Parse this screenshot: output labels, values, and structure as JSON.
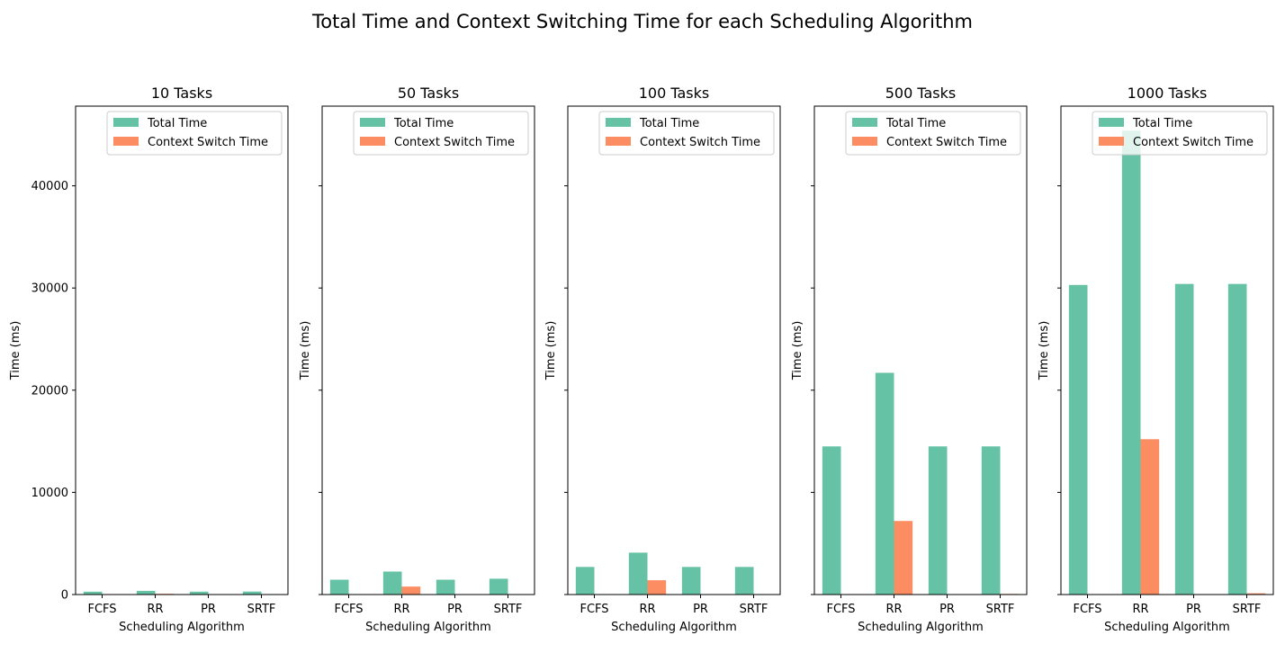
{
  "figure": {
    "title": "Total Time and Context Switching Time for each Scheduling Algorithm"
  },
  "colors": {
    "total_time": "#66c2a5",
    "context_switch_time": "#fc8d62"
  },
  "chart_data": [
    {
      "type": "bar",
      "title": "10 Tasks",
      "xlabel": "Scheduling Algorithm",
      "ylabel": "Time (ms)",
      "categories": [
        "FCFS",
        "RR",
        "PR",
        "SRTF"
      ],
      "ylim": [
        0,
        47800
      ],
      "yticks": [
        0,
        10000,
        20000,
        30000,
        40000
      ],
      "show_ytick_labels": true,
      "legend": {
        "position": "top-right"
      },
      "series": [
        {
          "name": "Total Time",
          "values": [
            280,
            360,
            280,
            290
          ]
        },
        {
          "name": "Context Switch Time",
          "values": [
            0,
            70,
            0,
            2
          ]
        }
      ]
    },
    {
      "type": "bar",
      "title": "50 Tasks",
      "xlabel": "Scheduling Algorithm",
      "ylabel": "Time (ms)",
      "categories": [
        "FCFS",
        "RR",
        "PR",
        "SRTF"
      ],
      "ylim": [
        0,
        47800
      ],
      "yticks": [
        0,
        10000,
        20000,
        30000,
        40000
      ],
      "show_ytick_labels": false,
      "legend": {
        "position": "top-right"
      },
      "series": [
        {
          "name": "Total Time",
          "values": [
            1450,
            2250,
            1450,
            1550
          ]
        },
        {
          "name": "Context Switch Time",
          "values": [
            0,
            780,
            0,
            5
          ]
        }
      ]
    },
    {
      "type": "bar",
      "title": "100 Tasks",
      "xlabel": "Scheduling Algorithm",
      "ylabel": "Time (ms)",
      "categories": [
        "FCFS",
        "RR",
        "PR",
        "SRTF"
      ],
      "ylim": [
        0,
        47800
      ],
      "yticks": [
        0,
        10000,
        20000,
        30000,
        40000
      ],
      "show_ytick_labels": false,
      "legend": {
        "position": "top-right"
      },
      "series": [
        {
          "name": "Total Time",
          "values": [
            2700,
            4100,
            2700,
            2700
          ]
        },
        {
          "name": "Context Switch Time",
          "values": [
            0,
            1400,
            0,
            10
          ]
        }
      ]
    },
    {
      "type": "bar",
      "title": "500 Tasks",
      "xlabel": "Scheduling Algorithm",
      "ylabel": "Time (ms)",
      "categories": [
        "FCFS",
        "RR",
        "PR",
        "SRTF"
      ],
      "ylim": [
        0,
        47800
      ],
      "yticks": [
        0,
        10000,
        20000,
        30000,
        40000
      ],
      "show_ytick_labels": false,
      "legend": {
        "position": "top-right"
      },
      "series": [
        {
          "name": "Total Time",
          "values": [
            14500,
            21700,
            14500,
            14500
          ]
        },
        {
          "name": "Context Switch Time",
          "values": [
            0,
            7200,
            0,
            60
          ]
        }
      ]
    },
    {
      "type": "bar",
      "title": "1000 Tasks",
      "xlabel": "Scheduling Algorithm",
      "ylabel": "Time (ms)",
      "categories": [
        "FCFS",
        "RR",
        "PR",
        "SRTF"
      ],
      "ylim": [
        0,
        47800
      ],
      "yticks": [
        0,
        10000,
        20000,
        30000,
        40000
      ],
      "show_ytick_labels": false,
      "legend": {
        "position": "top-right"
      },
      "series": [
        {
          "name": "Total Time",
          "values": [
            30300,
            45400,
            30400,
            30400
          ]
        },
        {
          "name": "Context Switch Time",
          "values": [
            0,
            15200,
            0,
            120
          ]
        }
      ]
    }
  ]
}
